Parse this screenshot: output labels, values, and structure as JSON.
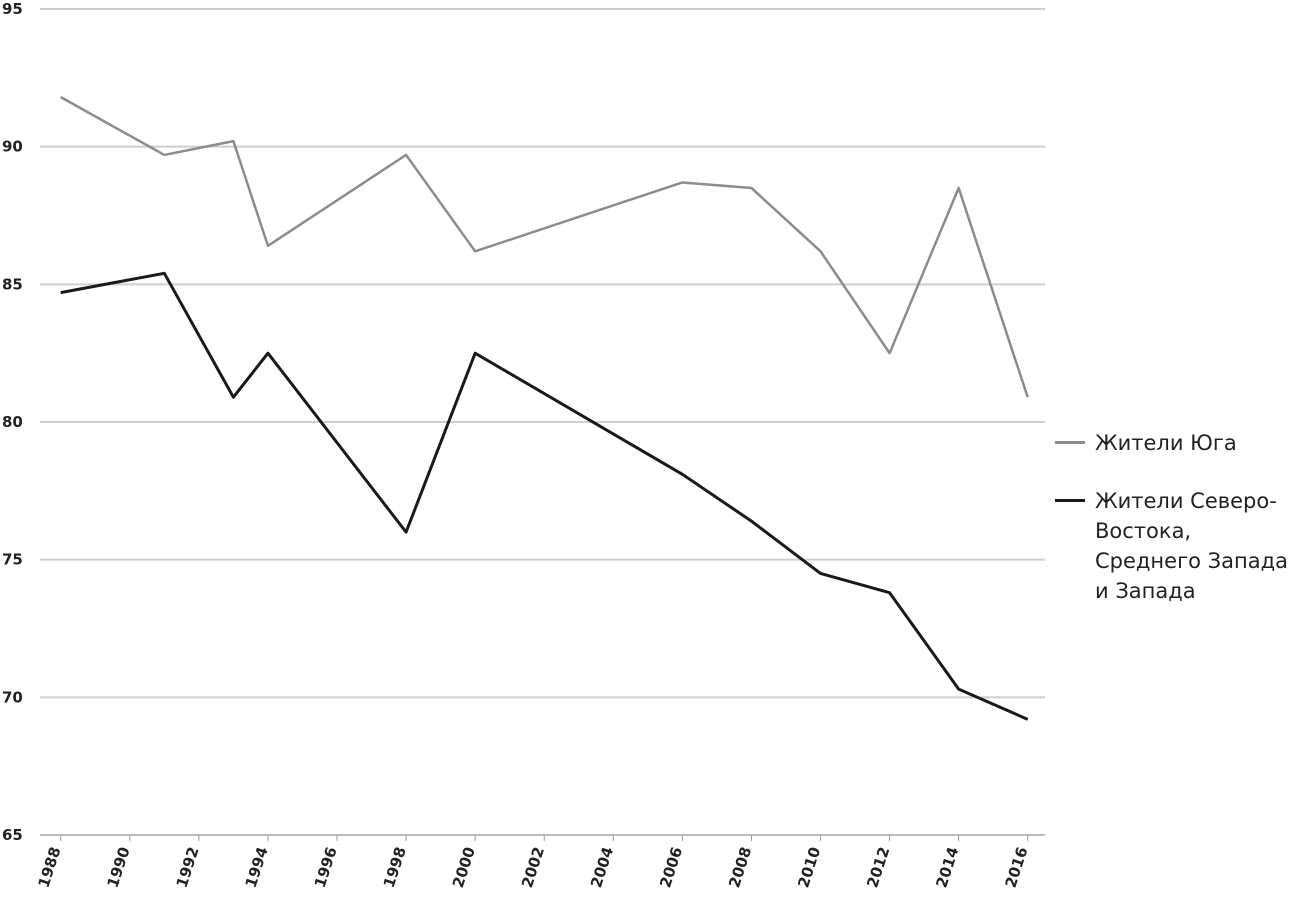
{
  "chart_data": {
    "type": "line",
    "series": [
      {
        "name": "Жители Юга",
        "color": "#8c8c8c",
        "x": [
          1988,
          1991,
          1993,
          1994,
          1998,
          2000,
          2006,
          2008,
          2010,
          2012,
          2014,
          2016
        ],
        "values": [
          91.8,
          89.7,
          90.2,
          86.4,
          89.7,
          86.2,
          88.7,
          88.5,
          86.2,
          82.5,
          88.5,
          80.9
        ]
      },
      {
        "name": "Жители Северо-Востока, Среднего Запада и Запада",
        "color": "#1a1a1a",
        "x": [
          1988,
          1991,
          1993,
          1994,
          1998,
          2000,
          2006,
          2008,
          2010,
          2012,
          2014,
          2016
        ],
        "values": [
          84.7,
          85.4,
          80.9,
          82.5,
          76.0,
          82.5,
          78.1,
          76.4,
          74.5,
          73.8,
          70.3,
          69.2
        ]
      }
    ],
    "xlim": [
      1987.4,
      2016.5
    ],
    "xticks": [
      1988,
      1990,
      1992,
      1994,
      1996,
      1998,
      2000,
      2002,
      2004,
      2006,
      2008,
      2010,
      2012,
      2014,
      2016
    ],
    "ylim": [
      65,
      95
    ],
    "yticks": [
      65,
      70,
      75,
      80,
      85,
      90,
      95
    ],
    "grid": true,
    "legend": "right"
  }
}
